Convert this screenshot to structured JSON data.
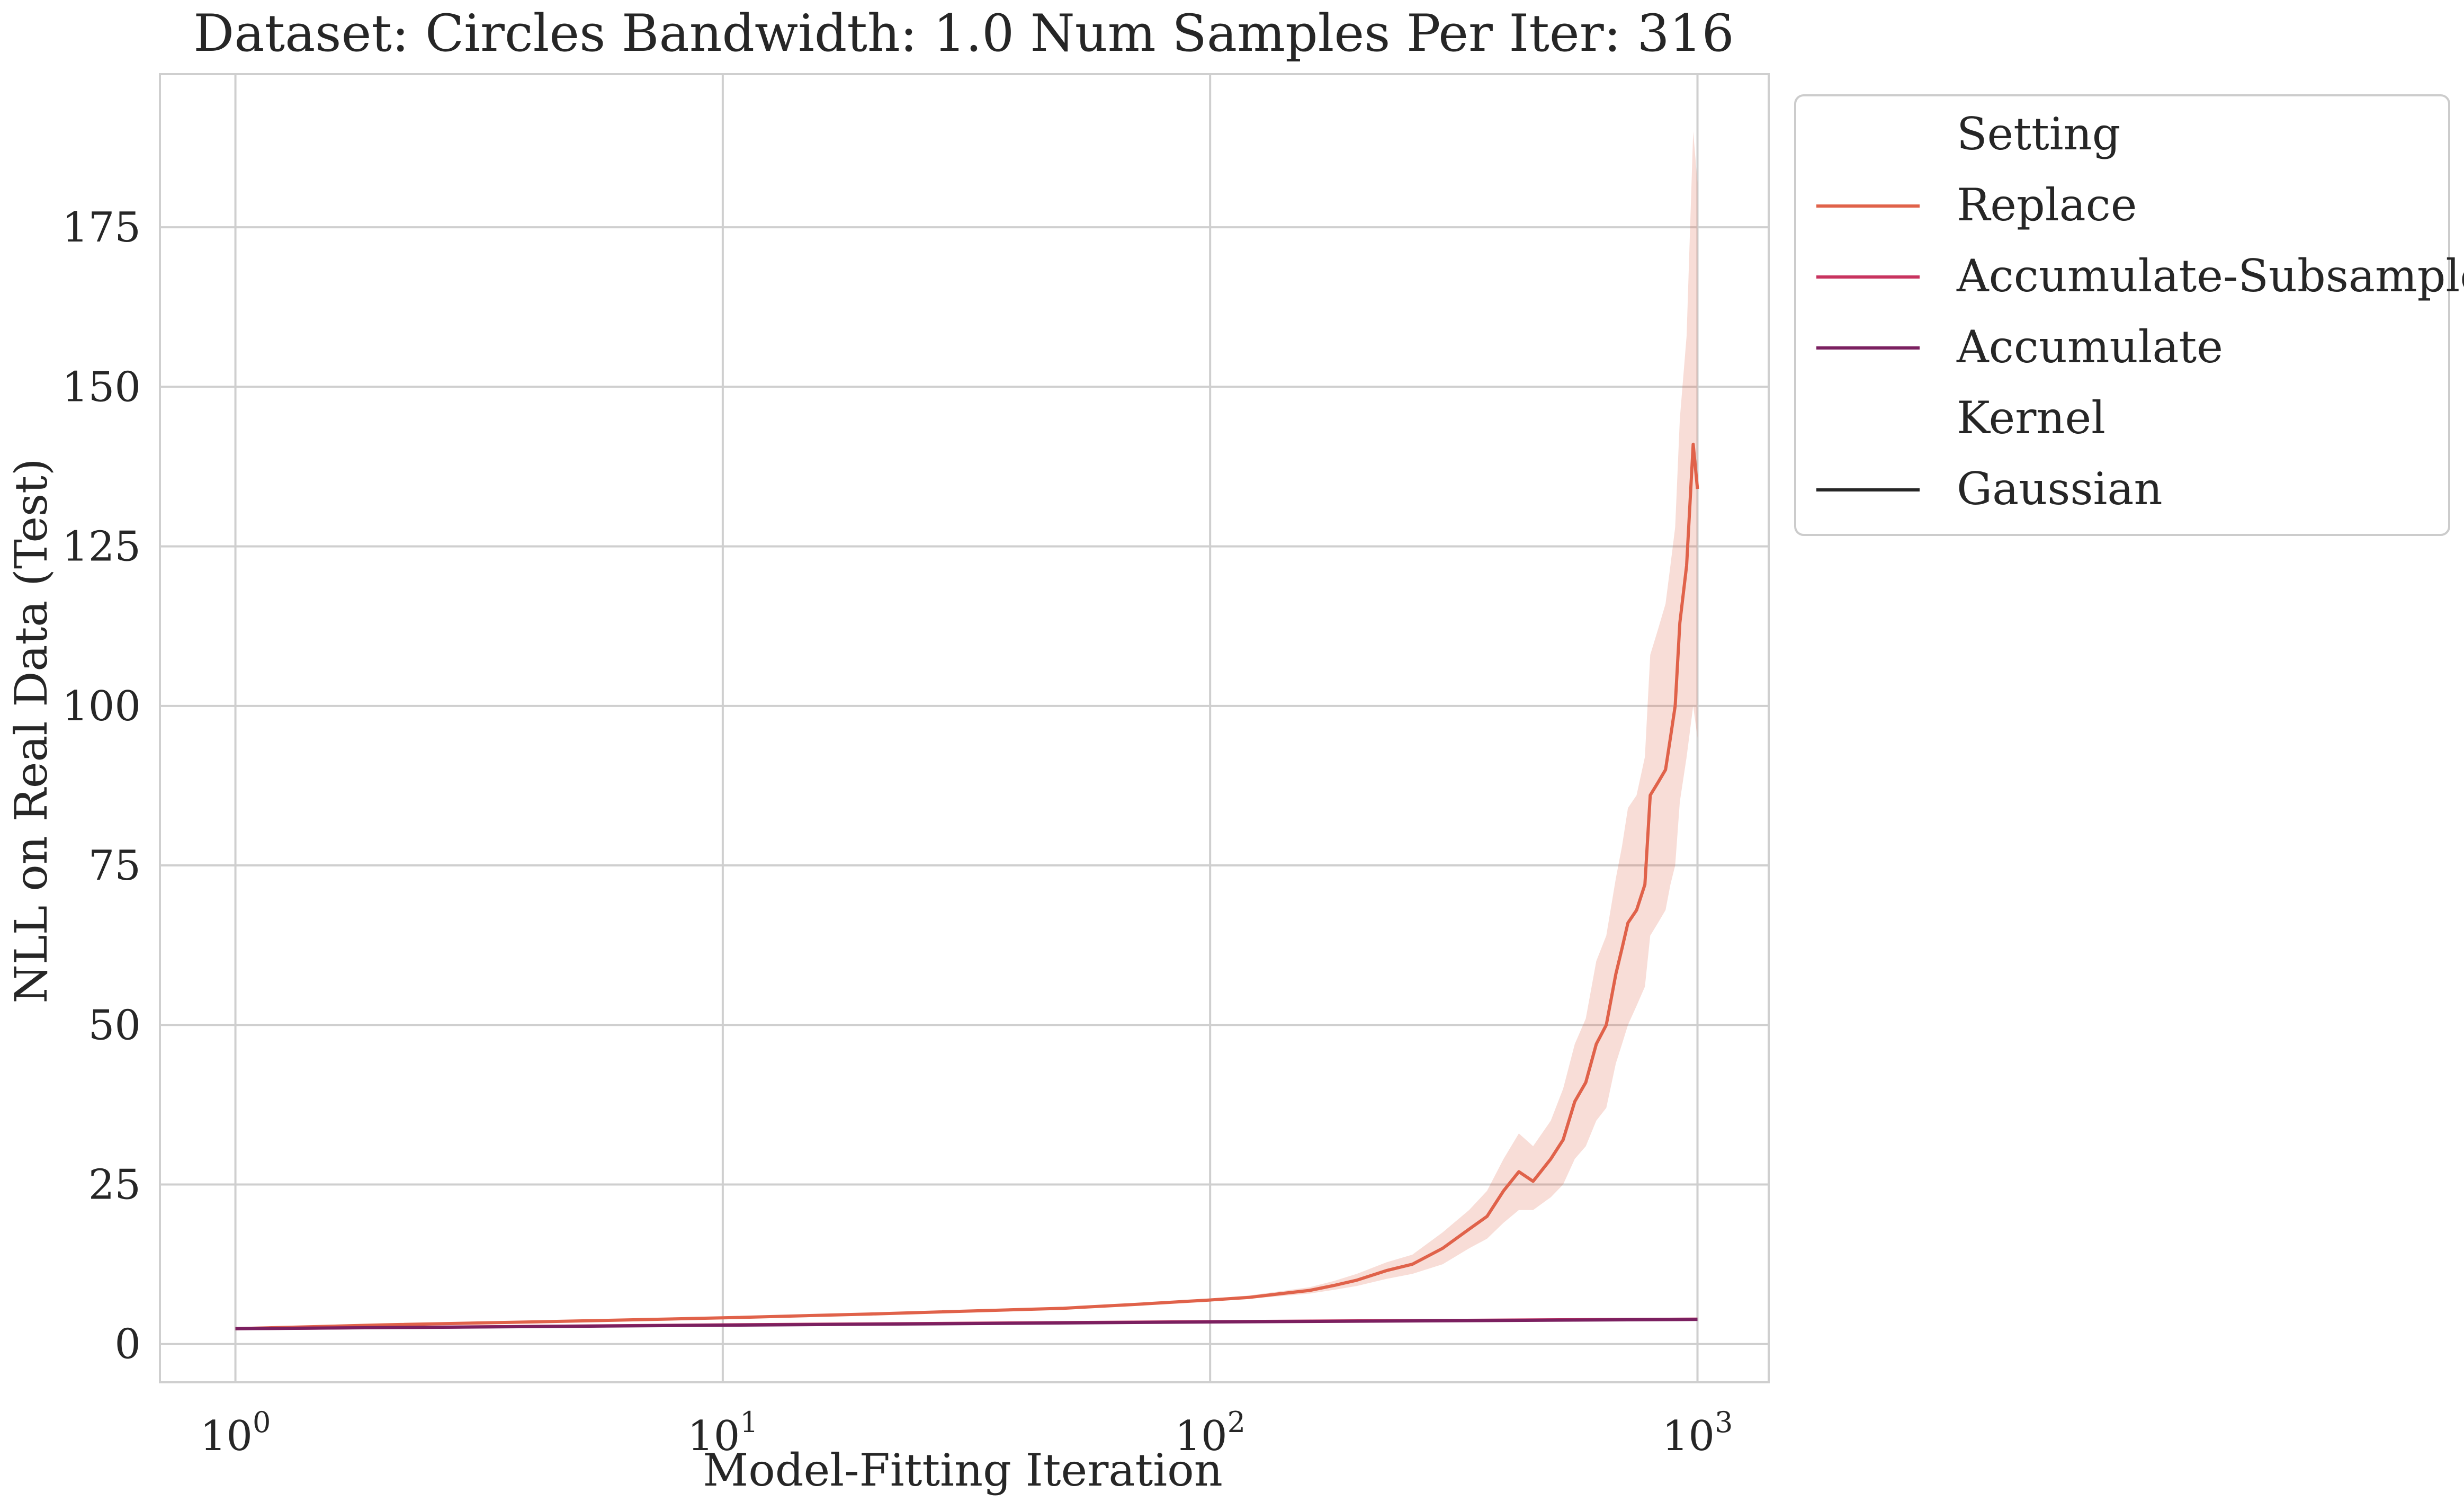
{
  "chart_data": {
    "type": "line",
    "title": "Dataset: Circles Bandwidth: 1.0 Num Samples Per Iter: 316",
    "xlabel": "Model-Fitting Iteration",
    "ylabel": "NLL on Real Data (Test)",
    "x_scale": "log",
    "xlim": [
      0.7,
      1400
    ],
    "ylim": [
      -6,
      199
    ],
    "x_ticks": [
      {
        "value": 1,
        "base": "10",
        "exp": "0"
      },
      {
        "value": 10,
        "base": "10",
        "exp": "1"
      },
      {
        "value": 100,
        "base": "10",
        "exp": "2"
      },
      {
        "value": 1000,
        "base": "10",
        "exp": "3"
      }
    ],
    "y_ticks": [
      0,
      25,
      50,
      75,
      100,
      125,
      150,
      175
    ],
    "grid": true,
    "legend": {
      "placement": "outside-right-top",
      "entries": [
        {
          "label": "Setting",
          "kind": "header"
        },
        {
          "label": "Replace",
          "kind": "line",
          "color": "#e0624a"
        },
        {
          "label": "Accumulate-Subsample",
          "kind": "line",
          "color": "#c8335f"
        },
        {
          "label": "Accumulate",
          "kind": "line",
          "color": "#7b2060"
        },
        {
          "label": "Kernel",
          "kind": "header"
        },
        {
          "label": "Gaussian",
          "kind": "line",
          "color": "#262626"
        }
      ]
    },
    "series": [
      {
        "name": "Replace",
        "color": "#e0624a",
        "x": [
          1,
          2,
          5,
          10,
          20,
          50,
          70,
          90,
          100,
          120,
          140,
          160,
          180,
          200,
          230,
          260,
          300,
          340,
          370,
          400,
          430,
          460,
          500,
          530,
          560,
          590,
          620,
          650,
          680,
          700,
          720,
          750,
          780,
          800,
          830,
          860,
          880,
          900,
          920,
          950,
          980,
          1000
        ],
        "y": [
          2.4,
          3,
          3.6,
          4.1,
          4.7,
          5.6,
          6.2,
          6.7,
          6.9,
          7.3,
          7.9,
          8.4,
          9.2,
          10,
          11.5,
          12.5,
          15,
          18,
          20,
          24,
          27,
          25.5,
          29,
          32,
          38,
          41,
          47,
          50,
          58,
          62,
          66,
          68,
          72,
          86,
          88,
          90,
          95,
          100,
          113,
          122,
          141,
          134
        ],
        "ci_lower": [
          2.4,
          3,
          3.6,
          4.1,
          4.7,
          5.6,
          6.1,
          6.5,
          6.7,
          7.1,
          7.5,
          7.9,
          8.5,
          9.1,
          10.2,
          11,
          12.5,
          15,
          16.5,
          19,
          21,
          21,
          23,
          25,
          29,
          31,
          35,
          37,
          44,
          47,
          50,
          53,
          56,
          64,
          66,
          68,
          72,
          75,
          85,
          92,
          100,
          95
        ],
        "ci_upper": [
          2.4,
          3,
          3.6,
          4.1,
          4.7,
          5.6,
          6.3,
          6.9,
          7.1,
          7.6,
          8.3,
          8.9,
          9.9,
          11,
          12.8,
          14,
          17.5,
          21,
          24,
          29,
          33,
          31,
          35,
          40,
          47,
          51,
          60,
          64,
          73,
          78,
          84,
          86,
          92,
          108,
          112,
          116,
          122,
          128,
          145,
          158,
          190,
          182
        ]
      },
      {
        "name": "Accumulate-Subsample",
        "color": "#c8335f",
        "x": [
          1,
          10,
          100,
          1000
        ],
        "y": [
          2.4,
          3.0,
          3.5,
          3.9
        ]
      },
      {
        "name": "Accumulate",
        "color": "#7b2060",
        "x": [
          1,
          10,
          100,
          1000
        ],
        "y": [
          2.4,
          2.95,
          3.45,
          3.85
        ]
      }
    ]
  }
}
